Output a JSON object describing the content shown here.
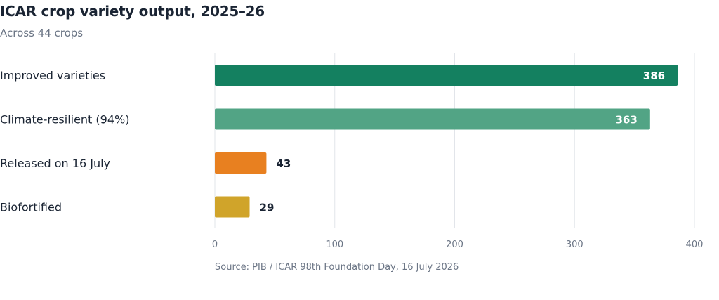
{
  "chart_data": {
    "type": "bar",
    "orientation": "horizontal",
    "title": "ICAR crop variety output, 2025–26",
    "subtitle": "Across 44 crops",
    "categories": [
      "Improved varieties",
      "Climate-resilient (94%)",
      "Released on 16 July",
      "Biofortified"
    ],
    "values": [
      386,
      363,
      43,
      29
    ],
    "value_labels": [
      "386",
      "363",
      "43",
      "29"
    ],
    "colors": [
      "#148060",
      "#52a485",
      "#e88020",
      "#d0a42a"
    ],
    "value_label_position": [
      "inside",
      "inside",
      "outside",
      "outside"
    ],
    "xlim": [
      0,
      400
    ],
    "xticks": [
      0,
      100,
      200,
      300,
      400
    ],
    "xtick_labels": [
      "0",
      "100",
      "200",
      "300",
      "400"
    ],
    "grid": "vertical",
    "legend": "none",
    "source": "Source: PIB / ICAR 98th Foundation Day, 16 July 2026"
  }
}
